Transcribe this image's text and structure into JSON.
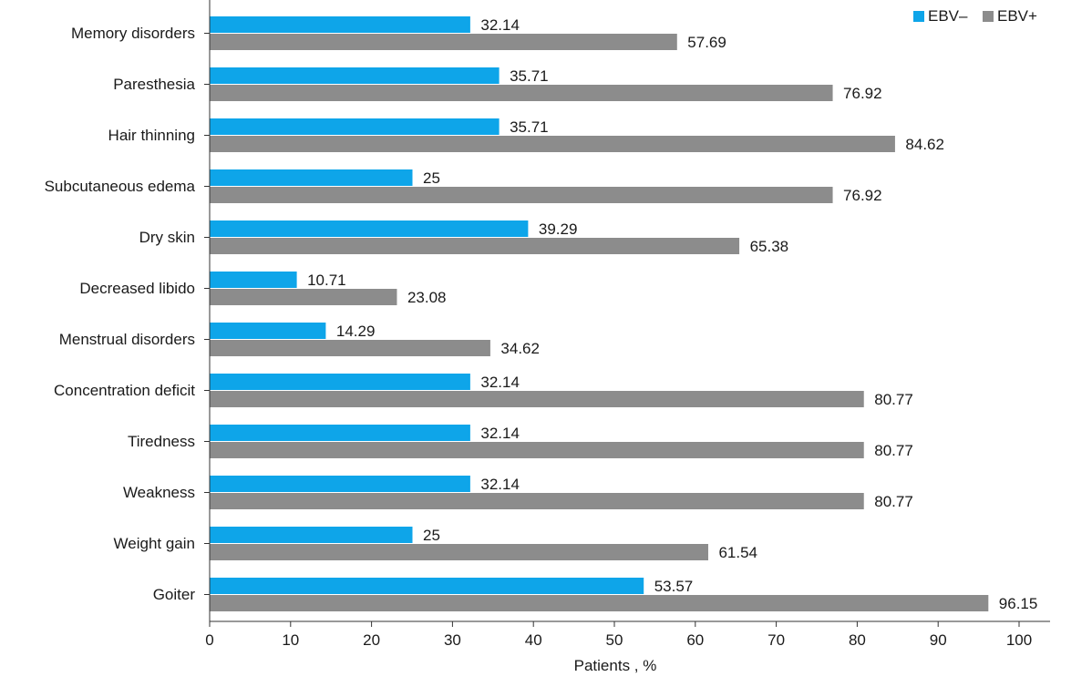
{
  "chart_data": {
    "type": "bar",
    "orientation": "horizontal",
    "categories": [
      "Memory disorders",
      "Paresthesia",
      "Hair thinning",
      "Subcutaneous edema",
      "Dry skin",
      "Decreased libido",
      "Menstrual disorders",
      "Concentration deficit",
      "Tiredness",
      "Weakness",
      "Weight gain",
      "Goiter"
    ],
    "series": [
      {
        "name": "EBV–",
        "color": "#0ea5e9",
        "values": [
          32.14,
          35.71,
          35.71,
          25,
          39.29,
          10.71,
          14.29,
          32.14,
          32.14,
          32.14,
          25,
          53.57
        ],
        "labels": [
          "32.14",
          "35.71",
          "35.71",
          "25",
          "39.29",
          "10.71",
          "14.29",
          "32.14",
          "32.14",
          "32.14",
          "25",
          "53.57"
        ]
      },
      {
        "name": "EBV+",
        "color": "#8c8c8c",
        "values": [
          57.69,
          76.92,
          84.62,
          76.92,
          65.38,
          23.08,
          34.62,
          80.77,
          80.77,
          80.77,
          61.54,
          96.15
        ],
        "labels": [
          "57.69",
          "76.92",
          "84.62",
          "76.92",
          "65.38",
          "23.08",
          "34.62",
          "80.77",
          "80.77",
          "80.77",
          "61.54",
          "96.15"
        ]
      }
    ],
    "xlabel": "Patients , %",
    "xlim": [
      0,
      100
    ],
    "xticks": [
      0,
      10,
      20,
      30,
      40,
      50,
      60,
      70,
      80,
      90,
      100
    ],
    "grid": false,
    "legend_position": "top-right"
  }
}
